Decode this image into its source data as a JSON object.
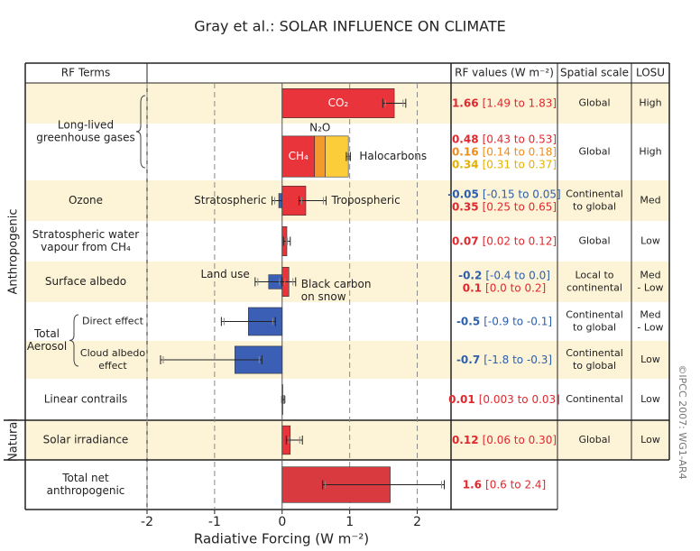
{
  "chart_data": {
    "type": "bar",
    "orientation": "horizontal",
    "title": "Gray et al.: SOLAR INFLUENCE ON CLIMATE",
    "headers": {
      "terms": "RF Terms",
      "values": "RF values (W m⁻²)",
      "scale": "Spatial scale",
      "losu": "LOSU"
    },
    "xlabel": "Radiative Forcing  (W m⁻²)",
    "xlim": [
      -2,
      2.5
    ],
    "xticks": [
      -2,
      -1,
      0,
      1,
      2
    ],
    "grid": true,
    "sections": [
      "Anthropogenic",
      "Natural"
    ],
    "credit": "©IPCC 2007: WG1-AR4",
    "rows": [
      {
        "group": [
          "Long-lived",
          "greenhouse gases"
        ],
        "scale": [
          "Global"
        ],
        "losu": [
          "High"
        ],
        "bars": [
          {
            "name": "CO₂",
            "value": 1.66,
            "low": 1.49,
            "high": 1.83,
            "range_label": "[1.49 to 1.83]",
            "color": "#e8343a",
            "text_color": "#e0282e"
          }
        ]
      },
      {
        "stack": true,
        "scale": [
          "Global"
        ],
        "losu": [
          "High"
        ],
        "bars": [
          {
            "name": "CH₄",
            "value": 0.48,
            "range_label": "[0.43 to 0.53]",
            "color": "#e8343a",
            "text_color": "#e0282e"
          },
          {
            "name": "N₂O",
            "value": 0.16,
            "range_label": "[0.14 to 0.18]",
            "color": "#f49a2a",
            "text_color": "#f08c1a"
          },
          {
            "name": "Halocarbons",
            "value": 0.34,
            "low": 0.31,
            "high": 0.37,
            "range_label": "[0.31 to 0.37]",
            "color": "#fbcd3b",
            "text_color": "#e6b000"
          }
        ]
      },
      {
        "label": [
          "Ozone"
        ],
        "scale": [
          "Continental",
          "to global"
        ],
        "losu": [
          "Med"
        ],
        "bars": [
          {
            "name": "Stratospheric",
            "value": -0.05,
            "low": -0.15,
            "high": 0.05,
            "range_label": "[-0.15 to 0.05]",
            "color": "#3b5fb5",
            "text_color": "#2b5fad"
          },
          {
            "name": "Tropospheric",
            "value": 0.35,
            "low": 0.25,
            "high": 0.65,
            "range_label": "[0.25 to 0.65]",
            "color": "#e8343a",
            "text_color": "#e0282e"
          }
        ]
      },
      {
        "label": [
          "Stratospheric water",
          "vapour from CH₄"
        ],
        "scale": [
          "Global"
        ],
        "losu": [
          "Low"
        ],
        "bars": [
          {
            "value": 0.07,
            "low": 0.02,
            "high": 0.12,
            "range_label": "[0.02 to 0.12]",
            "color": "#e8343a",
            "text_color": "#e0282e"
          }
        ]
      },
      {
        "label": [
          "Surface albedo"
        ],
        "scale": [
          "Local to",
          "continental"
        ],
        "losu": [
          "Med",
          "- Low"
        ],
        "bars": [
          {
            "name": "Land use",
            "value": -0.2,
            "low": -0.4,
            "high": 0.0,
            "range_label": "[-0.4 to 0.0]",
            "color": "#3b5fb5",
            "text_color": "#2b5fad"
          },
          {
            "name": [
              "Black carbon",
              "on snow"
            ],
            "value": 0.1,
            "low": 0.0,
            "high": 0.2,
            "range_label": "[0.0 to 0.2]",
            "color": "#e8343a",
            "text_color": "#e0282e"
          }
        ]
      },
      {
        "group": [
          "Total",
          "Aerosol"
        ],
        "label": [
          "Direct effect"
        ],
        "scale": [
          "Continental",
          "to global"
        ],
        "losu": [
          "Med",
          "- Low"
        ],
        "bars": [
          {
            "value": -0.5,
            "low": -0.9,
            "high": -0.1,
            "range_label": "[-0.9 to -0.1]",
            "color": "#3b5fb5",
            "text_color": "#2b5fad"
          }
        ]
      },
      {
        "label": [
          "Cloud albedo",
          "effect"
        ],
        "scale": [
          "Continental",
          "to global"
        ],
        "losu": [
          "Low"
        ],
        "bars": [
          {
            "value": -0.7,
            "low": -1.8,
            "high": -0.3,
            "range_label": "[-1.8 to -0.3]",
            "color": "#3b5fb5",
            "text_color": "#2b5fad"
          }
        ]
      },
      {
        "label": [
          "Linear contrails"
        ],
        "scale": [
          "Continental"
        ],
        "losu": [
          "Low"
        ],
        "bars": [
          {
            "value": 0.01,
            "low": 0.003,
            "high": 0.03,
            "range_label": "[0.003 to 0.03]",
            "color": "#e8343a",
            "text_color": "#e0282e"
          }
        ]
      },
      {
        "label": [
          "Solar irradiance"
        ],
        "scale": [
          "Global"
        ],
        "losu": [
          "Low"
        ],
        "bars": [
          {
            "value": 0.12,
            "low": 0.06,
            "high": 0.3,
            "range_label": "[0.06 to 0.30]",
            "color": "#e8343a",
            "text_color": "#e0282e"
          }
        ]
      },
      {
        "label": [
          "Total net",
          "anthropogenic"
        ],
        "bars": [
          {
            "value": 1.6,
            "low": 0.6,
            "high": 2.4,
            "range_label": "[0.6 to 2.4]",
            "color": "#d83a40",
            "text_color": "#e0282e"
          }
        ]
      }
    ]
  }
}
